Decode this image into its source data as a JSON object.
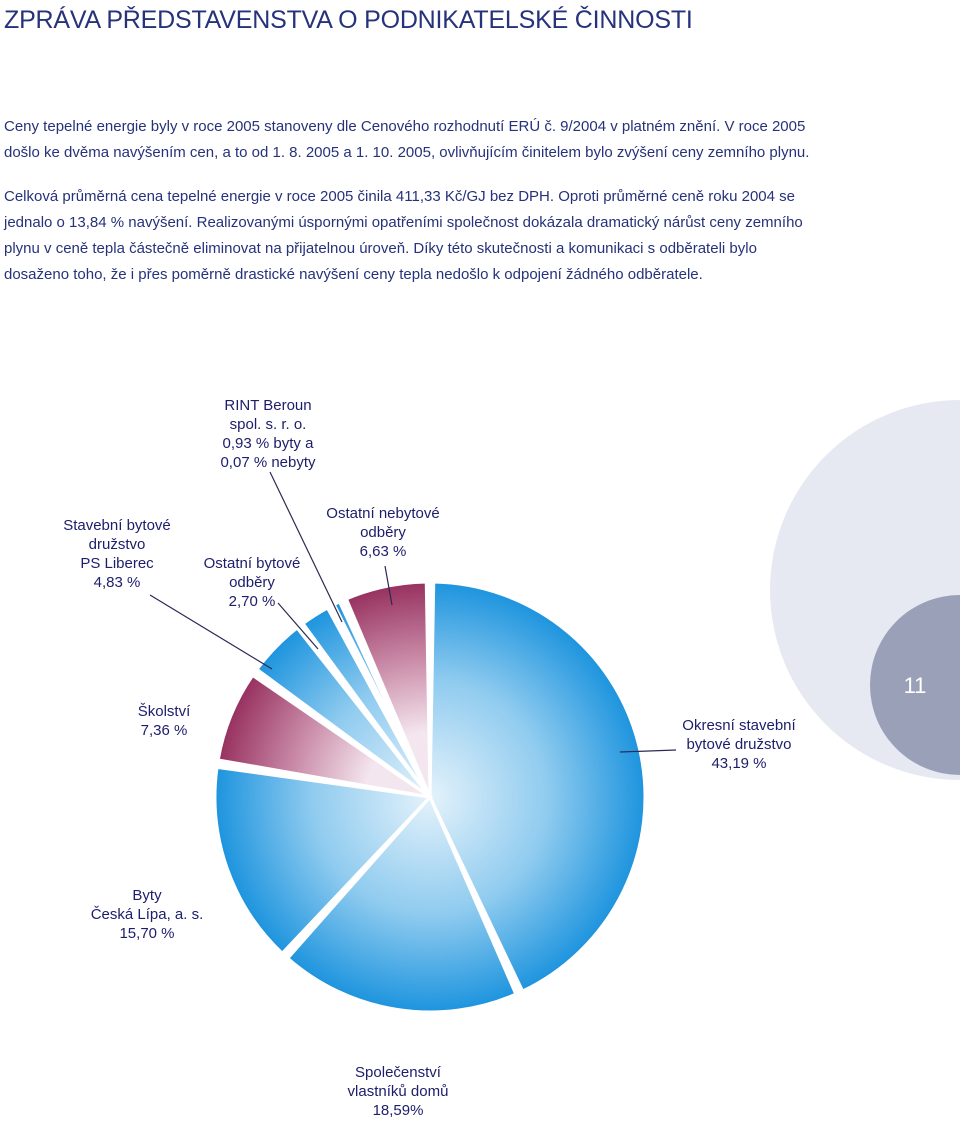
{
  "page": {
    "title": "ZPRÁVA PŘEDSTAVENSTVA O PODNIKATELSKÉ ČINNOSTI",
    "paragraph_1": "Ceny tepelné energie byly v roce 2005 stanoveny dle Cenového rozhodnutí ERÚ č. 9/2004 v platném znění. V roce 2005 došlo ke dvěma navýšením cen, a to od 1. 8. 2005 a 1. 10. 2005, ovlivňujícím činitelem bylo zvýšení ceny zemního plynu.",
    "paragraph_2": "Celková průměrná cena tepelné energie v roce 2005 činila 411,33 Kč/GJ bez DPH. Oproti průměrné ceně roku 2004 se jednalo o 13,84 % navýšení. Realizovanými úspornými opatřeními společnost dokázala dramatický nárůst ceny zemního plynu v ceně tepla částečně eliminovat na přijatelnou úroveň. Díky této skutečnosti a komunikaci s odběrateli bylo dosaženo toho, že i přes poměrně drastické navýšení ceny tepla nedošlo k odpojení žádného odběratele.",
    "page_number": "11"
  },
  "chart_data": {
    "type": "pie",
    "slices": [
      {
        "label": [
          "Okresní stavební",
          "bytové družstvo",
          "43,19 %"
        ],
        "value": 43.19,
        "color": "#2b9be0"
      },
      {
        "label": [
          "Společenství",
          "vlastníků domů",
          "18,59%"
        ],
        "value": 18.59,
        "color": "#2b9be0"
      },
      {
        "label": [
          "Byty",
          "Česká Lípa, a. s.",
          "15,70 %"
        ],
        "value": 15.7,
        "color": "#2b9be0"
      },
      {
        "label": [
          "Školství",
          "7,36 %"
        ],
        "value": 7.36,
        "color": "#a8406f"
      },
      {
        "label": [
          "Stavební bytové",
          "družstvo",
          "PS Liberec",
          "4,83 %"
        ],
        "value": 4.83,
        "color": "#2b9be0"
      },
      {
        "label": [
          "Ostatní bytové",
          "odběry",
          "2,70 %"
        ],
        "value": 2.7,
        "color": "#2b9be0"
      },
      {
        "label": [
          "RINT Beroun",
          "spol. s. r. o.",
          "0,93 % byty a",
          "0,07 % nebyty"
        ],
        "value": 1.0,
        "color": "#2b9be0"
      },
      {
        "label": [
          "Ostatní nebytové",
          "odběry",
          "6,63 %"
        ],
        "value": 6.63,
        "color": "#a8406f"
      }
    ]
  }
}
